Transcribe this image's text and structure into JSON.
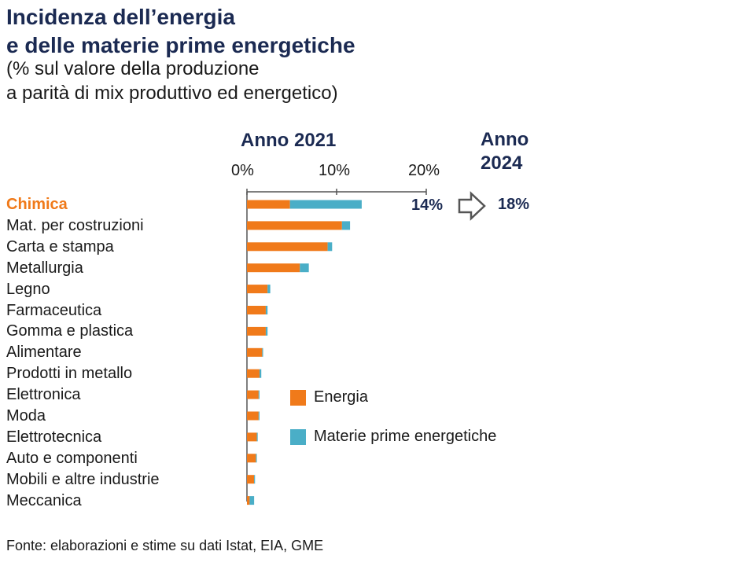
{
  "title_line1": "Incidenza dell’energia",
  "title_line2": "e delle materie prime energetiche",
  "subtitle_line1": "(% sul valore della produzione",
  "subtitle_line2": "a parità di mix produttivo ed energetico)",
  "header_2021": "Anno 2021",
  "header_2024_line1": "Anno",
  "header_2024_line2": "2024",
  "value_2021": "14%",
  "value_2024": "18%",
  "source": "Fonte: elaborazioni e stime su dati Istat, EIA, GME",
  "colors": {
    "energia": "#f07a1a",
    "materie": "#4aaec7",
    "title": "#1b2a52"
  },
  "chart_data": {
    "type": "bar",
    "orientation": "horizontal",
    "stacked": true,
    "title": "Incidenza dell’energia e delle materie prime energetiche",
    "xlim": [
      0,
      20
    ],
    "x_ticks": [
      "0%",
      "10%",
      "20%"
    ],
    "categories": [
      "Chimica",
      "Mat. per costruzioni",
      "Carta e stampa",
      "Metallurgia",
      "Legno",
      "Farmaceutica",
      "Gomma e plastica",
      "Alimentare",
      "Prodotti in metallo",
      "Elettronica",
      "Moda",
      "Elettrotecnica",
      "Auto e componenti",
      "Mobili e altre industrie",
      "Meccanica"
    ],
    "highlight_category": "Chimica",
    "series": [
      {
        "name": "Energia",
        "values": [
          4.8,
          10.6,
          9.0,
          5.9,
          2.3,
          2.1,
          2.1,
          1.7,
          1.4,
          1.3,
          1.3,
          1.1,
          1.0,
          0.8,
          0.3
        ]
      },
      {
        "name": "Materie prime energetiche",
        "values": [
          8.0,
          0.9,
          0.5,
          1.0,
          0.3,
          0.2,
          0.2,
          0.1,
          0.2,
          0.1,
          0.1,
          0.1,
          0.1,
          0.1,
          0.5
        ]
      }
    ],
    "legend": {
      "position": "bottom-right",
      "entries": [
        "Energia",
        "Materie prime energetiche"
      ]
    }
  }
}
